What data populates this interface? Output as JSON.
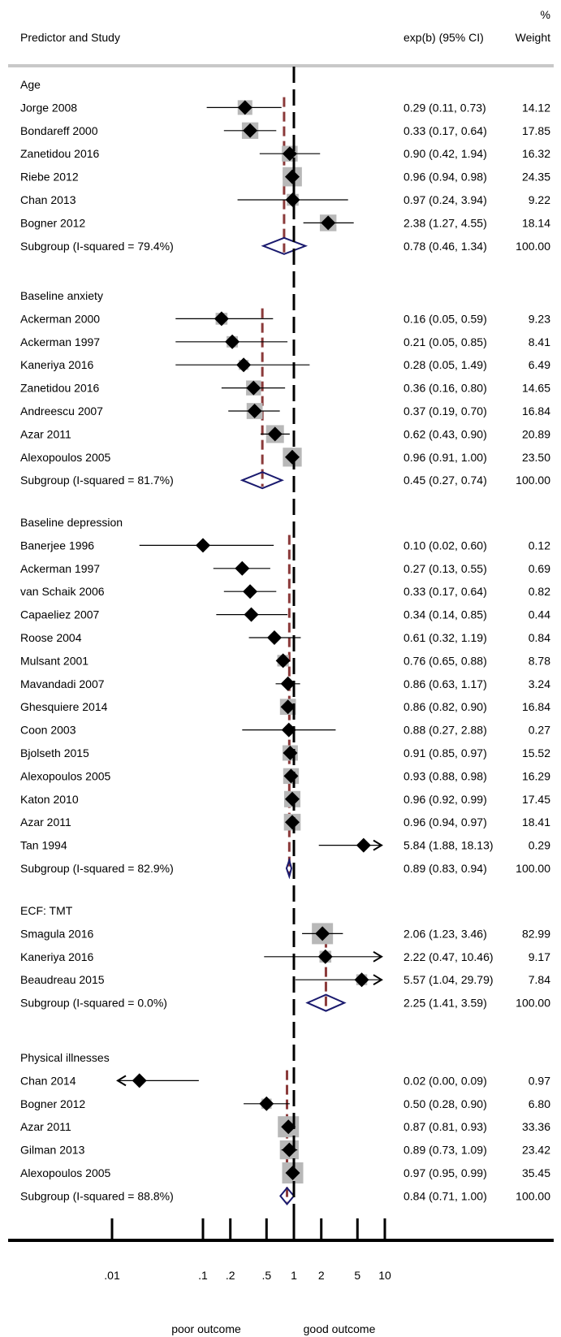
{
  "header": {
    "col_study": "Predictor and Study",
    "col_effect": "exp(b) (95% CI)",
    "col_weight_top": "%",
    "col_weight": "Weight"
  },
  "chart_data": {
    "type": "forest",
    "xscale": "log",
    "xticks": [
      0.01,
      0.1,
      0.2,
      0.5,
      1,
      2,
      5,
      10
    ],
    "xtick_labels": [
      ".01",
      ".1",
      ".2",
      ".5",
      "1",
      "2",
      "5",
      "10"
    ],
    "null_line": 1,
    "footer_left": "poor outcome",
    "footer_right": "good outcome",
    "groups": [
      {
        "name": "Age",
        "studies": [
          {
            "study": "Jorge 2008",
            "est": 0.29,
            "lo": 0.11,
            "hi": 0.73,
            "ci_text": "0.29 (0.11, 0.73)",
            "weight": "14.12"
          },
          {
            "study": "Bondareff 2000",
            "est": 0.33,
            "lo": 0.17,
            "hi": 0.64,
            "ci_text": "0.33 (0.17, 0.64)",
            "weight": "17.85"
          },
          {
            "study": "Zanetidou 2016",
            "est": 0.9,
            "lo": 0.42,
            "hi": 1.94,
            "ci_text": "0.90 (0.42, 1.94)",
            "weight": "16.32"
          },
          {
            "study": "Riebe 2012",
            "est": 0.96,
            "lo": 0.94,
            "hi": 0.98,
            "ci_text": "0.96 (0.94, 0.98)",
            "weight": "24.35"
          },
          {
            "study": "Chan 2013",
            "est": 0.97,
            "lo": 0.24,
            "hi": 3.94,
            "ci_text": "0.97 (0.24, 3.94)",
            "weight": "9.22"
          },
          {
            "study": "Bogner 2012",
            "est": 2.38,
            "lo": 1.27,
            "hi": 4.55,
            "ci_text": "2.38 (1.27, 4.55)",
            "weight": "18.14"
          }
        ],
        "subgroup": {
          "label": "Subgroup (I-squared = 79.4%)",
          "est": 0.78,
          "lo": 0.46,
          "hi": 1.34,
          "ci_text": "0.78 (0.46, 1.34)",
          "weight": "100.00"
        }
      },
      {
        "name": "Baseline anxiety",
        "studies": [
          {
            "study": "Ackerman 2000",
            "est": 0.16,
            "lo": 0.05,
            "hi": 0.59,
            "ci_text": "0.16 (0.05, 0.59)",
            "weight": "9.23"
          },
          {
            "study": "Ackerman 1997",
            "est": 0.21,
            "lo": 0.05,
            "hi": 0.85,
            "ci_text": "0.21 (0.05, 0.85)",
            "weight": "8.41"
          },
          {
            "study": "Kaneriya 2016",
            "est": 0.28,
            "lo": 0.05,
            "hi": 1.49,
            "ci_text": "0.28 (0.05, 1.49)",
            "weight": "6.49"
          },
          {
            "study": "Zanetidou 2016",
            "est": 0.36,
            "lo": 0.16,
            "hi": 0.8,
            "ci_text": "0.36 (0.16, 0.80)",
            "weight": "14.65"
          },
          {
            "study": "Andreescu 2007",
            "est": 0.37,
            "lo": 0.19,
            "hi": 0.7,
            "ci_text": "0.37 (0.19, 0.70)",
            "weight": "16.84"
          },
          {
            "study": "Azar 2011",
            "est": 0.62,
            "lo": 0.43,
            "hi": 0.9,
            "ci_text": "0.62 (0.43, 0.90)",
            "weight": "20.89"
          },
          {
            "study": "Alexopoulos 2005",
            "est": 0.96,
            "lo": 0.91,
            "hi": 1.0,
            "ci_text": "0.96 (0.91, 1.00)",
            "weight": "23.50"
          }
        ],
        "subgroup": {
          "label": "Subgroup (I-squared = 81.7%)",
          "est": 0.45,
          "lo": 0.27,
          "hi": 0.74,
          "ci_text": "0.45 (0.27, 0.74)",
          "weight": "100.00"
        }
      },
      {
        "name": "Baseline depression",
        "studies": [
          {
            "study": "Banerjee 1996",
            "est": 0.1,
            "lo": 0.02,
            "hi": 0.6,
            "ci_text": "0.10 (0.02, 0.60)",
            "weight": "0.12"
          },
          {
            "study": "Ackerman 1997",
            "est": 0.27,
            "lo": 0.13,
            "hi": 0.55,
            "ci_text": "0.27 (0.13, 0.55)",
            "weight": "0.69"
          },
          {
            "study": "van Schaik 2006",
            "est": 0.33,
            "lo": 0.17,
            "hi": 0.64,
            "ci_text": "0.33 (0.17, 0.64)",
            "weight": "0.82"
          },
          {
            "study": "Capaeliez 2007",
            "est": 0.34,
            "lo": 0.14,
            "hi": 0.85,
            "ci_text": "0.34 (0.14, 0.85)",
            "weight": "0.44"
          },
          {
            "study": "Roose 2004",
            "est": 0.61,
            "lo": 0.32,
            "hi": 1.19,
            "ci_text": "0.61 (0.32, 1.19)",
            "weight": "0.84"
          },
          {
            "study": "Mulsant 2001",
            "est": 0.76,
            "lo": 0.65,
            "hi": 0.88,
            "ci_text": "0.76 (0.65, 0.88)",
            "weight": "8.78"
          },
          {
            "study": "Mavandadi 2007",
            "est": 0.86,
            "lo": 0.63,
            "hi": 1.17,
            "ci_text": "0.86 (0.63, 1.17)",
            "weight": "3.24"
          },
          {
            "study": "Ghesquiere 2014",
            "est": 0.86,
            "lo": 0.82,
            "hi": 0.9,
            "ci_text": "0.86 (0.82, 0.90)",
            "weight": "16.84"
          },
          {
            "study": "Coon 2003",
            "est": 0.88,
            "lo": 0.27,
            "hi": 2.88,
            "ci_text": "0.88 (0.27, 2.88)",
            "weight": "0.27"
          },
          {
            "study": "Bjolseth 2015",
            "est": 0.91,
            "lo": 0.85,
            "hi": 0.97,
            "ci_text": "0.91 (0.85, 0.97)",
            "weight": "15.52"
          },
          {
            "study": "Alexopoulos 2005",
            "est": 0.93,
            "lo": 0.88,
            "hi": 0.98,
            "ci_text": "0.93 (0.88, 0.98)",
            "weight": "16.29"
          },
          {
            "study": "Katon 2010",
            "est": 0.96,
            "lo": 0.92,
            "hi": 0.99,
            "ci_text": "0.96 (0.92, 0.99)",
            "weight": "17.45"
          },
          {
            "study": "Azar 2011",
            "est": 0.96,
            "lo": 0.94,
            "hi": 0.97,
            "ci_text": "0.96 (0.94, 0.97)",
            "weight": "18.41"
          },
          {
            "study": "Tan 1994",
            "est": 5.84,
            "lo": 1.88,
            "hi": 18.13,
            "ci_text": "5.84 (1.88, 18.13)",
            "weight": "0.29"
          }
        ],
        "subgroup": {
          "label": "Subgroup (I-squared = 82.9%)",
          "est": 0.89,
          "lo": 0.83,
          "hi": 0.94,
          "ci_text": "0.89 (0.83, 0.94)",
          "weight": "100.00"
        }
      },
      {
        "name": "ECF: TMT",
        "studies": [
          {
            "study": "Smagula 2016",
            "est": 2.06,
            "lo": 1.23,
            "hi": 3.46,
            "ci_text": "2.06 (1.23, 3.46)",
            "weight": "82.99"
          },
          {
            "study": "Kaneriya 2016",
            "est": 2.22,
            "lo": 0.47,
            "hi": 10.46,
            "ci_text": "2.22 (0.47, 10.46)",
            "weight": "9.17"
          },
          {
            "study": "Beaudreau 2015",
            "est": 5.57,
            "lo": 1.04,
            "hi": 29.79,
            "ci_text": "5.57 (1.04, 29.79)",
            "weight": "7.84"
          }
        ],
        "subgroup": {
          "label": "Subgroup (I-squared = 0.0%)",
          "est": 2.25,
          "lo": 1.41,
          "hi": 3.59,
          "ci_text": "2.25 (1.41, 3.59)",
          "weight": "100.00"
        }
      },
      {
        "name": "Physical illnesses",
        "studies": [
          {
            "study": "Chan 2014",
            "est": 0.02,
            "lo": 0.0,
            "hi": 0.09,
            "ci_text": "0.02 (0.00, 0.09)",
            "weight": "0.97"
          },
          {
            "study": "Bogner 2012",
            "est": 0.5,
            "lo": 0.28,
            "hi": 0.9,
            "ci_text": "0.50 (0.28, 0.90)",
            "weight": "6.80"
          },
          {
            "study": "Azar 2011",
            "est": 0.87,
            "lo": 0.81,
            "hi": 0.93,
            "ci_text": "0.87 (0.81, 0.93)",
            "weight": "33.36"
          },
          {
            "study": "Gilman 2013",
            "est": 0.89,
            "lo": 0.73,
            "hi": 1.09,
            "ci_text": "0.89 (0.73, 1.09)",
            "weight": "23.42"
          },
          {
            "study": "Alexopoulos 2005",
            "est": 0.97,
            "lo": 0.95,
            "hi": 0.99,
            "ci_text": "0.97 (0.95, 0.99)",
            "weight": "35.45"
          }
        ],
        "subgroup": {
          "label": "Subgroup (I-squared = 88.8%)",
          "est": 0.84,
          "lo": 0.71,
          "hi": 1.0,
          "ci_text": "0.84 (0.71, 1.00)",
          "weight": "100.00"
        }
      }
    ]
  },
  "colors": {
    "marker": "#000000",
    "weight_box": "#b8b8b8",
    "pooled_line": "#8b3a3a",
    "subgroup_diamond": "#1a1a6e",
    "header_rule": "#c8c8c8"
  }
}
